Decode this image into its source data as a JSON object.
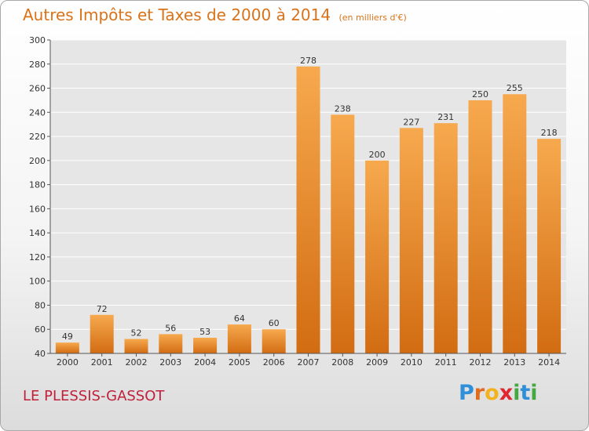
{
  "title": "Autres Impôts et Taxes de 2000 à 2014",
  "subtitle": "(en milliers d'€)",
  "commune": "LE PLESSIS-GASSOT",
  "logo": {
    "letters": [
      "P",
      "r",
      "o",
      "x",
      "i",
      "t",
      "i"
    ],
    "colors": [
      "#2f8fd8",
      "#e36b1c",
      "#f3b31f",
      "#e0262f",
      "#46a842",
      "#2f8fd8",
      "#46a842"
    ]
  },
  "colors": {
    "title": "#d9731a",
    "commune": "#c0203a",
    "bar_top": "#f7a94e",
    "bar_bottom": "#d26c12"
  },
  "chart_data": {
    "type": "bar",
    "categories": [
      "2000",
      "2001",
      "2002",
      "2003",
      "2004",
      "2005",
      "2006",
      "2007",
      "2008",
      "2009",
      "2010",
      "2011",
      "2012",
      "2013",
      "2014"
    ],
    "values": [
      49,
      72,
      52,
      56,
      53,
      64,
      60,
      278,
      238,
      200,
      227,
      231,
      250,
      255,
      218
    ],
    "ylim": [
      40,
      300
    ],
    "yticks": [
      40,
      60,
      80,
      100,
      120,
      140,
      160,
      180,
      200,
      220,
      240,
      260,
      280,
      300
    ],
    "grid": true,
    "title": "Autres Impôts et Taxes de 2000 à 2014",
    "subtitle": "(en milliers d'€)",
    "xlabel": "",
    "ylabel": ""
  }
}
